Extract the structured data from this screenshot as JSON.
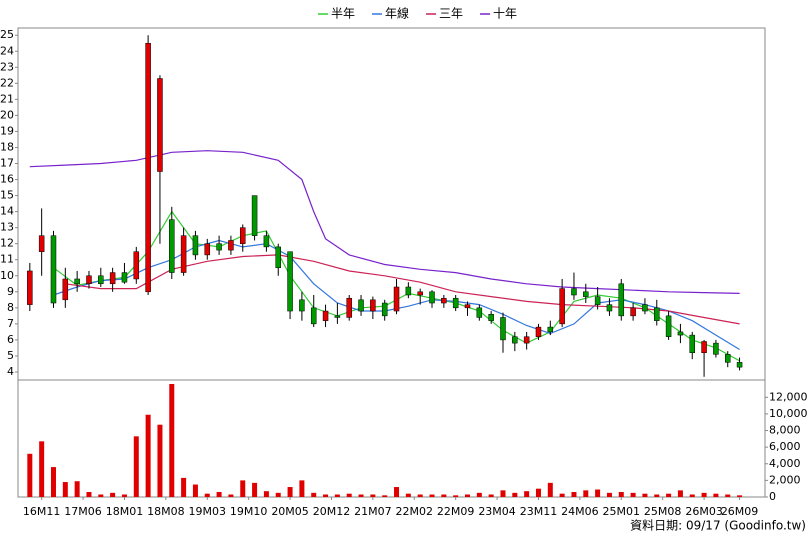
{
  "chart_data": {
    "type": "candlestick",
    "up_color": "#e00000",
    "down_color": "#009900",
    "x": [
      -2,
      0,
      2,
      4,
      6,
      8,
      10,
      12,
      14,
      16,
      18,
      20,
      22,
      24,
      26,
      28,
      30,
      32,
      34,
      36,
      38,
      40,
      42,
      44,
      46,
      48,
      50,
      52,
      54,
      56,
      58,
      60,
      62,
      64,
      66,
      68,
      70,
      72,
      74,
      76,
      78,
      80,
      82,
      84,
      86,
      88,
      90,
      92,
      94,
      96,
      98,
      100,
      102,
      104,
      106,
      108,
      110,
      112,
      114,
      116,
      118
    ],
    "open": [
      8.2,
      11.5,
      12.5,
      8.5,
      9.8,
      9.5,
      10.0,
      9.5,
      10.2,
      9.8,
      9.0,
      16.5,
      13.5,
      10.2,
      12.5,
      11.3,
      12.0,
      11.6,
      12.0,
      15.0,
      12.5,
      11.8,
      11.5,
      8.5,
      8.0,
      7.2,
      7.5,
      7.4,
      8.5,
      7.8,
      8.3,
      7.8,
      9.3,
      8.8,
      9.0,
      8.3,
      8.6,
      8.0,
      8.0,
      7.6,
      7.4,
      6.2,
      5.8,
      6.2,
      6.8,
      7.0,
      9.2,
      9.0,
      8.7,
      8.2,
      9.5,
      7.5,
      8.2,
      8.0,
      7.5,
      6.5,
      6.3,
      5.2,
      5.8,
      5.1,
      4.6
    ],
    "high": [
      10.8,
      14.2,
      12.8,
      10.5,
      10.3,
      10.3,
      10.5,
      10.5,
      10.8,
      11.8,
      25.0,
      22.5,
      14.3,
      13.0,
      12.8,
      12.3,
      12.5,
      12.5,
      13.2,
      15.0,
      12.8,
      12.0,
      11.5,
      9.0,
      8.8,
      8.2,
      8.3,
      8.8,
      8.8,
      8.7,
      8.5,
      9.8,
      9.6,
      9.2,
      9.1,
      8.8,
      8.8,
      8.4,
      8.2,
      7.8,
      7.7,
      6.5,
      6.5,
      7.0,
      7.2,
      9.8,
      10.2,
      9.5,
      9.3,
      8.6,
      9.8,
      8.3,
      8.6,
      8.5,
      7.8,
      7.0,
      6.5,
      6.0,
      6.0,
      5.3,
      4.9
    ],
    "low": [
      7.8,
      10.0,
      8.0,
      8.0,
      9.0,
      9.2,
      9.3,
      9.0,
      9.5,
      9.5,
      8.8,
      12.0,
      9.8,
      10.0,
      11.0,
      11.0,
      11.3,
      11.3,
      11.5,
      12.2,
      11.5,
      10.0,
      7.3,
      7.2,
      6.8,
      6.8,
      7.0,
      7.2,
      7.5,
      7.3,
      7.2,
      7.6,
      8.6,
      8.2,
      8.0,
      8.0,
      7.8,
      7.5,
      7.2,
      7.0,
      5.2,
      5.3,
      5.4,
      6.0,
      6.3,
      6.8,
      8.5,
      8.3,
      7.9,
      7.5,
      7.2,
      7.2,
      7.6,
      6.9,
      6.0,
      5.8,
      4.8,
      3.7,
      4.9,
      4.3,
      4.1
    ],
    "close": [
      10.3,
      12.5,
      8.3,
      9.8,
      9.5,
      10.0,
      9.5,
      10.2,
      9.6,
      11.5,
      24.5,
      22.3,
      10.2,
      12.5,
      11.3,
      12.0,
      11.6,
      12.2,
      13.0,
      12.5,
      11.8,
      10.5,
      7.8,
      7.8,
      7.0,
      7.8,
      7.4,
      8.6,
      7.8,
      8.5,
      7.5,
      9.3,
      8.8,
      9.0,
      8.3,
      8.6,
      8.0,
      8.2,
      7.4,
      7.2,
      6.0,
      5.8,
      6.2,
      6.8,
      6.5,
      9.2,
      8.8,
      8.7,
      8.2,
      7.8,
      7.5,
      8.0,
      7.8,
      7.2,
      6.2,
      6.3,
      5.2,
      5.9,
      5.1,
      4.6,
      4.3
    ],
    "series": [
      {
        "name": "半年",
        "color": "#33cc33",
        "x": [
          2,
          6,
          10,
          14,
          18,
          22,
          26,
          30,
          34,
          38,
          42,
          46,
          50,
          54,
          58,
          62,
          66,
          70,
          74,
          78,
          82,
          86,
          90,
          94,
          98,
          102,
          106,
          110,
          114,
          118
        ],
        "values": [
          10.5,
          9.4,
          9.7,
          9.9,
          11.5,
          14.0,
          12.0,
          11.8,
          12.5,
          12.8,
          10.0,
          8.0,
          7.5,
          8.0,
          8.1,
          8.9,
          8.6,
          8.3,
          7.8,
          6.6,
          5.8,
          6.5,
          8.4,
          8.8,
          8.6,
          8.0,
          7.0,
          6.0,
          5.5,
          4.7
        ]
      },
      {
        "name": "年線",
        "color": "#3377dd",
        "x": [
          2,
          6,
          10,
          14,
          18,
          22,
          26,
          30,
          34,
          38,
          42,
          46,
          50,
          54,
          58,
          62,
          66,
          70,
          74,
          78,
          82,
          86,
          90,
          94,
          98,
          102,
          106,
          110,
          114,
          118
        ],
        "values": [
          8.8,
          9.3,
          9.7,
          9.8,
          10.5,
          11.0,
          11.8,
          12.2,
          11.8,
          12.0,
          11.2,
          9.5,
          8.3,
          7.8,
          7.8,
          8.1,
          8.5,
          8.4,
          8.2,
          7.6,
          6.9,
          6.4,
          7.0,
          8.3,
          8.5,
          8.2,
          7.8,
          7.2,
          6.3,
          5.4
        ]
      },
      {
        "name": "三年",
        "color": "#cc2255",
        "x": [
          4,
          10,
          16,
          22,
          28,
          34,
          40,
          46,
          52,
          58,
          64,
          70,
          76,
          82,
          88,
          94,
          100,
          106,
          112,
          118
        ],
        "values": [
          9.5,
          9.2,
          9.2,
          10.4,
          10.9,
          11.2,
          11.3,
          10.9,
          10.3,
          10.0,
          9.6,
          9.0,
          8.7,
          8.4,
          8.2,
          8.1,
          8.0,
          7.8,
          7.4,
          7.0
        ]
      },
      {
        "name": "十年",
        "color": "#7722cc",
        "x": [
          -2,
          4,
          10,
          16,
          22,
          28,
          34,
          40,
          44,
          46,
          48,
          52,
          58,
          64,
          70,
          76,
          82,
          88,
          94,
          100,
          106,
          112,
          118
        ],
        "values": [
          16.8,
          16.9,
          17.0,
          17.2,
          17.7,
          17.8,
          17.7,
          17.2,
          16.0,
          14.0,
          12.3,
          11.3,
          10.7,
          10.4,
          10.2,
          9.8,
          9.5,
          9.3,
          9.2,
          9.1,
          9.0,
          8.95,
          8.9
        ]
      }
    ],
    "xlim": [
      -4,
      122.3
    ],
    "xticks": [
      {
        "value": 0,
        "label": "16M11"
      },
      {
        "value": 7,
        "label": "17M06"
      },
      {
        "value": 14,
        "label": "18M01"
      },
      {
        "value": 21,
        "label": "18M08"
      },
      {
        "value": 28,
        "label": "19M03"
      },
      {
        "value": 35,
        "label": "19M10"
      },
      {
        "value": 42,
        "label": "20M05"
      },
      {
        "value": 49,
        "label": "20M12"
      },
      {
        "value": 56,
        "label": "21M07"
      },
      {
        "value": 63,
        "label": "22M02"
      },
      {
        "value": 70,
        "label": "22M09"
      },
      {
        "value": 77,
        "label": "23M04"
      },
      {
        "value": 84,
        "label": "23M11"
      },
      {
        "value": 91,
        "label": "24M06"
      },
      {
        "value": 98,
        "label": "25M01"
      },
      {
        "value": 105,
        "label": "25M08"
      },
      {
        "value": 112,
        "label": "26M03"
      },
      {
        "value": 118,
        "label": "26M09"
      }
    ],
    "ylim": [
      3.5,
      25.45
    ],
    "yticks": [
      4,
      5,
      6,
      7,
      8,
      9,
      10,
      11,
      12,
      13,
      14,
      15,
      16,
      17,
      18,
      19,
      20,
      21,
      22,
      23,
      24,
      25
    ],
    "volume": {
      "color": "#e00000",
      "values": [
        5200,
        6700,
        3600,
        1800,
        1900,
        600,
        300,
        500,
        300,
        7300,
        9900,
        8700,
        13600,
        2300,
        1500,
        400,
        600,
        300,
        2000,
        1700,
        700,
        500,
        1200,
        2000,
        500,
        300,
        300,
        400,
        300,
        300,
        200,
        1200,
        400,
        300,
        300,
        300,
        200,
        300,
        500,
        300,
        800,
        500,
        700,
        1000,
        1700,
        400,
        600,
        800,
        900,
        500,
        600,
        500,
        400,
        300,
        400,
        800,
        300,
        500,
        400,
        300,
        200
      ],
      "ylim": [
        0,
        13600
      ],
      "yticks": [
        0,
        {
          "value": 2000,
          "label": "2,000"
        },
        {
          "value": 4000,
          "label": "4,000"
        },
        {
          "value": 6000,
          "label": "6,000"
        },
        {
          "value": 8000,
          "label": "8,000"
        },
        {
          "value": 10000,
          "label": "10,000"
        },
        {
          "value": 12000,
          "label": "12,000"
        }
      ]
    },
    "source": "資料日期: 09/17 (Goodinfo.tw)"
  }
}
